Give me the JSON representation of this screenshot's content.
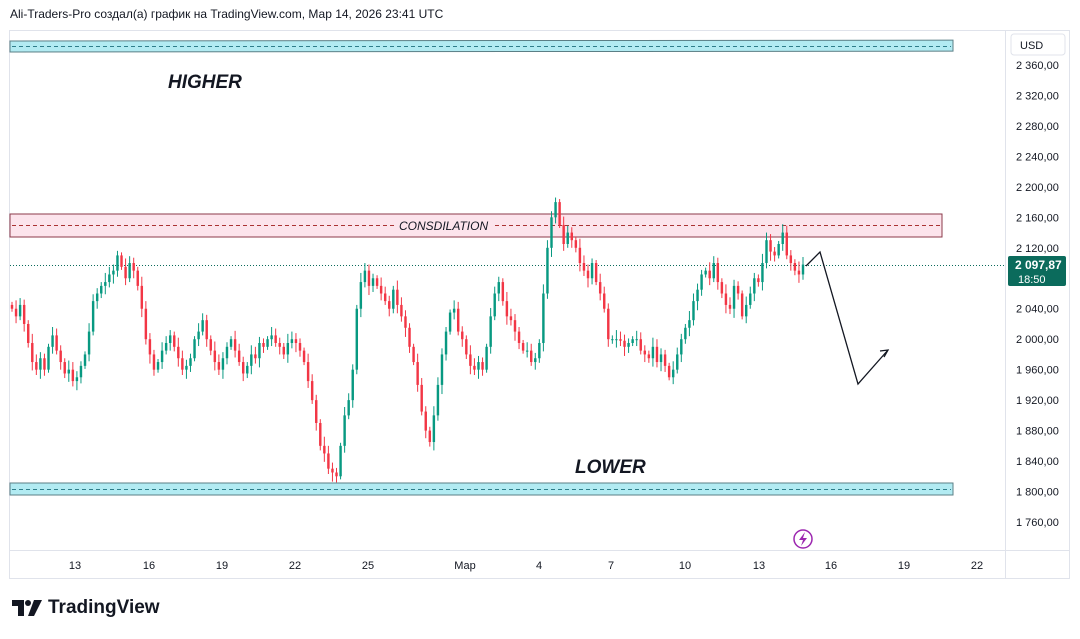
{
  "header": {
    "caption": "Ali-Traders-Pro создал(а) график на TradingView.com, Мар 14, 2026 23:41 UTC"
  },
  "brand": {
    "name": "TradingView",
    "icon": "tradingview-logo-icon"
  },
  "price_axis": {
    "currency": "USD",
    "tick_labels": [
      "2 360,00",
      "2 320,00",
      "2 280,00",
      "2 240,00",
      "2 200,00",
      "2 160,00",
      "2 120,00",
      "2 040,00",
      "2 000,00",
      "1 960,00",
      "1 920,00",
      "1 880,00",
      "1 840,00",
      "1 800,00",
      "1 760,00"
    ],
    "last_price_label": "2 097,87",
    "countdown_label": "18:50"
  },
  "time_axis": {
    "tick_labels": [
      "13",
      "16",
      "19",
      "22",
      "25",
      "Мар",
      "4",
      "7",
      "10",
      "13",
      "16",
      "19",
      "22"
    ]
  },
  "annotations": {
    "higher": "HIGHER",
    "lower": "LOWER",
    "consolidation": "CONSDILATION"
  },
  "colors": {
    "bull": "#089981",
    "bear": "#f23645",
    "support_fill": "#b2ebf2",
    "resistance_fill": "#fce4ec",
    "last_price_bg": "#0b6b5c",
    "lightning_icon": "#9c27b0"
  },
  "chart_data": {
    "type": "candlestick",
    "ylim": [
      1740,
      2380
    ],
    "y_ticks": [
      2360,
      2320,
      2280,
      2240,
      2200,
      2160,
      2120,
      2040,
      2000,
      1960,
      1920,
      1880,
      1840,
      1800,
      1760
    ],
    "last_price": 2097.87,
    "zones": [
      {
        "name": "HIGHER",
        "low": 2367,
        "high": 2383
      },
      {
        "name": "CONSDILATION",
        "low": 2134,
        "high": 2165
      },
      {
        "name": "LOWER",
        "low": 1798,
        "high": 1814
      }
    ],
    "projection": [
      2097,
      2118,
      1944,
      1987
    ],
    "closes": [
      2040,
      2030,
      2045,
      2020,
      1995,
      1970,
      1960,
      1975,
      1960,
      1990,
      2005,
      1985,
      1970,
      1955,
      1960,
      1945,
      1950,
      1965,
      1980,
      2010,
      2050,
      2060,
      2070,
      2075,
      2085,
      2090,
      2110,
      2095,
      2080,
      2100,
      2090,
      2070,
      2040,
      2000,
      1980,
      1960,
      1970,
      1985,
      1995,
      2005,
      1990,
      1975,
      1960,
      1965,
      1975,
      2000,
      2010,
      2025,
      2000,
      1985,
      1970,
      1960,
      1975,
      1990,
      2000,
      1985,
      1970,
      1955,
      1965,
      1980,
      1975,
      1995,
      1990,
      2000,
      2005,
      1995,
      1990,
      1980,
      1995,
      2000,
      1995,
      1985,
      1970,
      1945,
      1920,
      1890,
      1860,
      1850,
      1830,
      1825,
      1820,
      1860,
      1900,
      1920,
      1960,
      2040,
      2075,
      2090,
      2070,
      2080,
      2070,
      2060,
      2050,
      2040,
      2065,
      2045,
      2030,
      2015,
      1990,
      1970,
      1940,
      1905,
      1880,
      1865,
      1900,
      1940,
      1980,
      2010,
      2035,
      2040,
      2010,
      2000,
      1980,
      1965,
      1960,
      1970,
      1960,
      1990,
      2030,
      2060,
      2075,
      2050,
      2030,
      2025,
      2010,
      1995,
      1985,
      1985,
      1970,
      1975,
      1995,
      2060,
      2120,
      2160,
      2180,
      2150,
      2125,
      2140,
      2130,
      2120,
      2100,
      2090,
      2080,
      2100,
      2075,
      2060,
      2040,
      2000,
      2000,
      2000,
      1998,
      1990,
      1995,
      2000,
      2000,
      1985,
      1980,
      1975,
      1990,
      1970,
      1980,
      1965,
      1950,
      1960,
      1980,
      2000,
      2015,
      2025,
      2050,
      2065,
      2085,
      2090,
      2080,
      2100,
      2075,
      2060,
      2045,
      2040,
      2070,
      2060,
      2030,
      2045,
      2060,
      2080,
      2075,
      2100,
      2130,
      2115,
      2110,
      2125,
      2140,
      2110,
      2100,
      2090,
      2085,
      2098
    ]
  }
}
